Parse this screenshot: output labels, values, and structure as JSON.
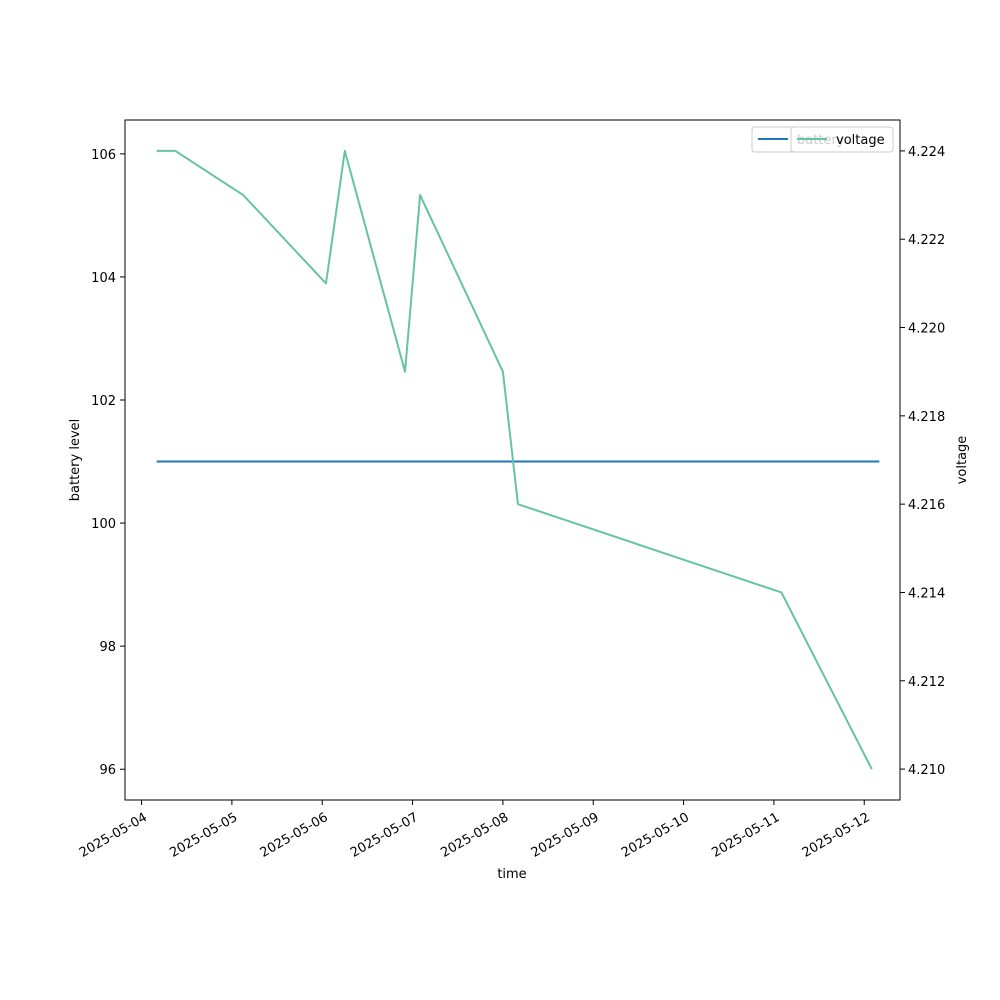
{
  "chart_data": {
    "type": "line",
    "xlabel": "time",
    "ylabel": "battery level",
    "y2label": "voltage",
    "x_ticks": [
      "2025-05-04",
      "2025-05-05",
      "2025-05-06",
      "2025-05-07",
      "2025-05-08",
      "2025-05-09",
      "2025-05-10",
      "2025-05-11",
      "2025-05-12"
    ],
    "xlim": [
      "2025-05-03T19:36",
      "2025-05-12T09:30"
    ],
    "ylim": [
      95.5,
      106.55
    ],
    "y_ticks": [
      96,
      98,
      100,
      102,
      104,
      106
    ],
    "y2lim": [
      4.2093,
      4.2247
    ],
    "y2_ticks": [
      4.21,
      4.212,
      4.214,
      4.216,
      4.218,
      4.22,
      4.222,
      4.224
    ],
    "y2_tick_labels": [
      "4.210",
      "4.212",
      "4.214",
      "4.216",
      "4.218",
      "4.220",
      "4.222",
      "4.224"
    ],
    "grid": false,
    "legends": [
      {
        "placement": "top-right",
        "entries": [
          {
            "label": "battery",
            "color": "#1f77b4"
          }
        ]
      },
      {
        "placement": "top-right",
        "entries": [
          {
            "label": "voltage",
            "color": "#66c2a5"
          }
        ]
      }
    ],
    "series": [
      {
        "name": "battery",
        "axis": "left",
        "color": "#1f77b4",
        "x": [
          "2025-05-04T04:00",
          "2025-05-12T04:00"
        ],
        "y": [
          101,
          101
        ]
      },
      {
        "name": "voltage",
        "axis": "right",
        "color": "#66c2a5",
        "x": [
          "2025-05-04T04:00",
          "2025-05-04T09:00",
          "2025-05-05T03:00",
          "2025-05-06T01:00",
          "2025-05-06T06:00",
          "2025-05-06T22:00",
          "2025-05-07T02:00",
          "2025-05-08T00:00",
          "2025-05-08T04:00",
          "2025-05-11T02:00",
          "2025-05-12T02:00"
        ],
        "y": [
          4.224,
          4.224,
          4.223,
          4.221,
          4.224,
          4.219,
          4.223,
          4.219,
          4.216,
          4.214,
          4.21
        ]
      }
    ]
  }
}
